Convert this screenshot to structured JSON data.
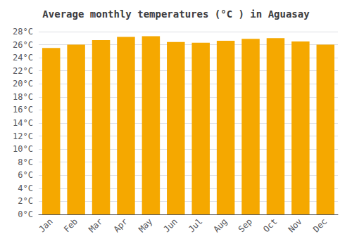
{
  "chart_data": {
    "type": "bar",
    "title": "Average monthly temperatures (°C ) in Aguasay",
    "categories": [
      "Jan",
      "Feb",
      "Mar",
      "Apr",
      "May",
      "Jun",
      "Jul",
      "Aug",
      "Sep",
      "Oct",
      "Nov",
      "Dec"
    ],
    "values": [
      25.5,
      26.0,
      26.7,
      27.2,
      27.3,
      26.4,
      26.3,
      26.6,
      26.9,
      27.0,
      26.5,
      26.0
    ],
    "color": "#F5A800",
    "ylim": [
      0,
      28
    ],
    "yticks": [
      {
        "value": 0,
        "label": "0°C"
      },
      {
        "value": 2,
        "label": "2°C"
      },
      {
        "value": 4,
        "label": "4°C"
      },
      {
        "value": 6,
        "label": "6°C"
      },
      {
        "value": 8,
        "label": "8°C"
      },
      {
        "value": 10,
        "label": "10°C"
      },
      {
        "value": 12,
        "label": "12°C"
      },
      {
        "value": 14,
        "label": "14°C"
      },
      {
        "value": 16,
        "label": "16°C"
      },
      {
        "value": 18,
        "label": "18°C"
      },
      {
        "value": 20,
        "label": "20°C"
      },
      {
        "value": 22,
        "label": "22°C"
      },
      {
        "value": 24,
        "label": "24°C"
      },
      {
        "value": 26,
        "label": "26°C"
      },
      {
        "value": 28,
        "label": "28°C"
      }
    ],
    "grid": true
  }
}
